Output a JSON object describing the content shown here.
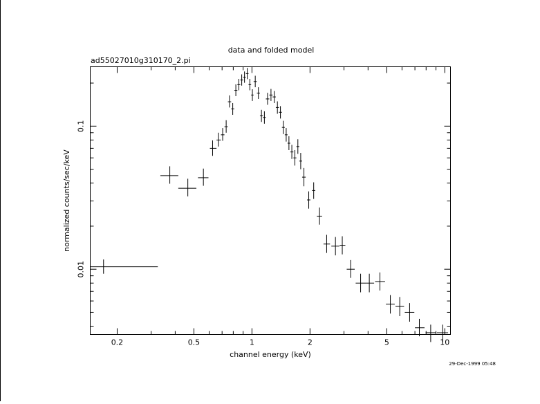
{
  "chart_data": {
    "type": "scatter",
    "title": "data and folded model",
    "subtitle": "ad55027010g310170_2.pi",
    "xlabel": "channel energy (keV)",
    "ylabel": "normalized counts/sec/keV",
    "timestamp": "29-Dec-1999 05:48",
    "x_scale": "log",
    "y_scale": "log",
    "xlim": [
      0.145,
      10.7
    ],
    "ylim": [
      0.0035,
      0.26
    ],
    "x_ticks": [
      {
        "value": 0.2,
        "label": "0.2"
      },
      {
        "value": 0.5,
        "label": "0.5"
      },
      {
        "value": 1,
        "label": "1"
      },
      {
        "value": 2,
        "label": "2"
      },
      {
        "value": 5,
        "label": "5"
      },
      {
        "value": 10,
        "label": "10"
      }
    ],
    "y_ticks": [
      {
        "value": 0.01,
        "label": "0.01"
      },
      {
        "value": 0.1,
        "label": "0.1"
      }
    ],
    "grid": false,
    "legend": "none",
    "series": [
      {
        "points": [
          {
            "x": 0.17,
            "xlo": 0.145,
            "xhi": 0.325,
            "y": 0.0104,
            "ylo": 0.0093,
            "yhi": 0.0117
          },
          {
            "x": 0.375,
            "xlo": 0.335,
            "xhi": 0.415,
            "y": 0.0451,
            "ylo": 0.0396,
            "yhi": 0.0524
          },
          {
            "x": 0.465,
            "xlo": 0.415,
            "xhi": 0.515,
            "y": 0.0368,
            "ylo": 0.0323,
            "yhi": 0.0429
          },
          {
            "x": 0.56,
            "xlo": 0.525,
            "xhi": 0.595,
            "y": 0.0436,
            "ylo": 0.0383,
            "yhi": 0.0505
          },
          {
            "x": 0.625,
            "xlo": 0.605,
            "xhi": 0.655,
            "y": 0.07,
            "ylo": 0.062,
            "yhi": 0.0795
          },
          {
            "x": 0.67,
            "xlo": 0.655,
            "xhi": 0.69,
            "y": 0.08,
            "ylo": 0.072,
            "yhi": 0.09
          },
          {
            "x": 0.705,
            "xlo": 0.69,
            "xhi": 0.72,
            "y": 0.087,
            "ylo": 0.079,
            "yhi": 0.097
          },
          {
            "x": 0.735,
            "xlo": 0.72,
            "xhi": 0.75,
            "y": 0.099,
            "ylo": 0.09,
            "yhi": 0.11
          },
          {
            "x": 0.765,
            "xlo": 0.75,
            "xhi": 0.78,
            "y": 0.148,
            "ylo": 0.135,
            "yhi": 0.164
          },
          {
            "x": 0.795,
            "xlo": 0.78,
            "xhi": 0.81,
            "y": 0.132,
            "ylo": 0.12,
            "yhi": 0.145
          },
          {
            "x": 0.825,
            "xlo": 0.81,
            "xhi": 0.84,
            "y": 0.178,
            "ylo": 0.162,
            "yhi": 0.196
          },
          {
            "x": 0.855,
            "xlo": 0.84,
            "xhi": 0.87,
            "y": 0.195,
            "ylo": 0.178,
            "yhi": 0.214
          },
          {
            "x": 0.885,
            "xlo": 0.87,
            "xhi": 0.9,
            "y": 0.21,
            "ylo": 0.192,
            "yhi": 0.23
          },
          {
            "x": 0.915,
            "xlo": 0.9,
            "xhi": 0.93,
            "y": 0.22,
            "ylo": 0.201,
            "yhi": 0.241
          },
          {
            "x": 0.945,
            "xlo": 0.93,
            "xhi": 0.96,
            "y": 0.233,
            "ylo": 0.213,
            "yhi": 0.255
          },
          {
            "x": 0.975,
            "xlo": 0.96,
            "xhi": 0.99,
            "y": 0.195,
            "ylo": 0.178,
            "yhi": 0.214
          },
          {
            "x": 1.005,
            "xlo": 0.99,
            "xhi": 1.02,
            "y": 0.165,
            "ylo": 0.15,
            "yhi": 0.181
          },
          {
            "x": 1.04,
            "xlo": 1.02,
            "xhi": 1.06,
            "y": 0.205,
            "ylo": 0.187,
            "yhi": 0.225
          },
          {
            "x": 1.08,
            "xlo": 1.06,
            "xhi": 1.1,
            "y": 0.17,
            "ylo": 0.155,
            "yhi": 0.187
          },
          {
            "x": 1.12,
            "xlo": 1.1,
            "xhi": 1.14,
            "y": 0.118,
            "ylo": 0.107,
            "yhi": 0.13
          },
          {
            "x": 1.16,
            "xlo": 1.14,
            "xhi": 1.18,
            "y": 0.115,
            "ylo": 0.104,
            "yhi": 0.127
          },
          {
            "x": 1.205,
            "xlo": 1.18,
            "xhi": 1.23,
            "y": 0.155,
            "ylo": 0.141,
            "yhi": 0.171
          },
          {
            "x": 1.255,
            "xlo": 1.23,
            "xhi": 1.28,
            "y": 0.165,
            "ylo": 0.15,
            "yhi": 0.182
          },
          {
            "x": 1.305,
            "xlo": 1.28,
            "xhi": 1.33,
            "y": 0.16,
            "ylo": 0.145,
            "yhi": 0.176
          },
          {
            "x": 1.355,
            "xlo": 1.33,
            "xhi": 1.38,
            "y": 0.135,
            "ylo": 0.122,
            "yhi": 0.149
          },
          {
            "x": 1.405,
            "xlo": 1.38,
            "xhi": 1.43,
            "y": 0.125,
            "ylo": 0.113,
            "yhi": 0.138
          },
          {
            "x": 1.455,
            "xlo": 1.43,
            "xhi": 1.48,
            "y": 0.098,
            "ylo": 0.088,
            "yhi": 0.109
          },
          {
            "x": 1.505,
            "xlo": 1.48,
            "xhi": 1.53,
            "y": 0.087,
            "ylo": 0.078,
            "yhi": 0.097
          },
          {
            "x": 1.555,
            "xlo": 1.53,
            "xhi": 1.58,
            "y": 0.076,
            "ylo": 0.068,
            "yhi": 0.085
          },
          {
            "x": 1.61,
            "xlo": 1.58,
            "xhi": 1.64,
            "y": 0.066,
            "ylo": 0.059,
            "yhi": 0.074
          },
          {
            "x": 1.67,
            "xlo": 1.64,
            "xhi": 1.7,
            "y": 0.06,
            "ylo": 0.053,
            "yhi": 0.068
          },
          {
            "x": 1.73,
            "xlo": 1.7,
            "xhi": 1.76,
            "y": 0.072,
            "ylo": 0.064,
            "yhi": 0.081
          },
          {
            "x": 1.79,
            "xlo": 1.76,
            "xhi": 1.82,
            "y": 0.057,
            "ylo": 0.05,
            "yhi": 0.065
          },
          {
            "x": 1.86,
            "xlo": 1.82,
            "xhi": 1.9,
            "y": 0.044,
            "ylo": 0.038,
            "yhi": 0.051
          },
          {
            "x": 1.97,
            "xlo": 1.93,
            "xhi": 2.01,
            "y": 0.0305,
            "ylo": 0.0265,
            "yhi": 0.035
          },
          {
            "x": 2.09,
            "xlo": 2.05,
            "xhi": 2.13,
            "y": 0.0355,
            "ylo": 0.031,
            "yhi": 0.0405
          },
          {
            "x": 2.24,
            "xlo": 2.17,
            "xhi": 2.31,
            "y": 0.0235,
            "ylo": 0.0205,
            "yhi": 0.027
          },
          {
            "x": 2.44,
            "xlo": 2.35,
            "xhi": 2.54,
            "y": 0.015,
            "ylo": 0.013,
            "yhi": 0.0174
          },
          {
            "x": 2.71,
            "xlo": 2.58,
            "xhi": 2.84,
            "y": 0.0145,
            "ylo": 0.0125,
            "yhi": 0.0168
          },
          {
            "x": 2.94,
            "xlo": 2.85,
            "xhi": 3.05,
            "y": 0.0147,
            "ylo": 0.0127,
            "yhi": 0.017
          },
          {
            "x": 3.25,
            "xlo": 3.1,
            "xhi": 3.41,
            "y": 0.01,
            "ylo": 0.0087,
            "yhi": 0.0116
          },
          {
            "x": 3.66,
            "xlo": 3.45,
            "xhi": 3.9,
            "y": 0.008,
            "ylo": 0.0069,
            "yhi": 0.0093
          },
          {
            "x": 4.06,
            "xlo": 3.9,
            "xhi": 4.3,
            "y": 0.008,
            "ylo": 0.0069,
            "yhi": 0.0093
          },
          {
            "x": 4.61,
            "xlo": 4.35,
            "xhi": 4.9,
            "y": 0.0082,
            "ylo": 0.0071,
            "yhi": 0.0095
          },
          {
            "x": 5.22,
            "xlo": 4.95,
            "xhi": 5.5,
            "y": 0.0057,
            "ylo": 0.0049,
            "yhi": 0.0066
          },
          {
            "x": 5.84,
            "xlo": 5.55,
            "xhi": 6.15,
            "y": 0.0055,
            "ylo": 0.0047,
            "yhi": 0.0064
          },
          {
            "x": 6.57,
            "xlo": 6.2,
            "xhi": 6.95,
            "y": 0.005,
            "ylo": 0.0043,
            "yhi": 0.0058
          },
          {
            "x": 7.38,
            "xlo": 7.0,
            "xhi": 7.85,
            "y": 0.0039,
            "ylo": 0.0034,
            "yhi": 0.0045
          },
          {
            "x": 8.45,
            "xlo": 7.95,
            "xhi": 9.0,
            "y": 0.0036,
            "ylo": 0.0031,
            "yhi": 0.0041
          },
          {
            "x": 9.75,
            "xlo": 9.1,
            "xhi": 10.4,
            "y": 0.0036,
            "ylo": 0.0031,
            "yhi": 0.0041
          }
        ]
      }
    ]
  }
}
